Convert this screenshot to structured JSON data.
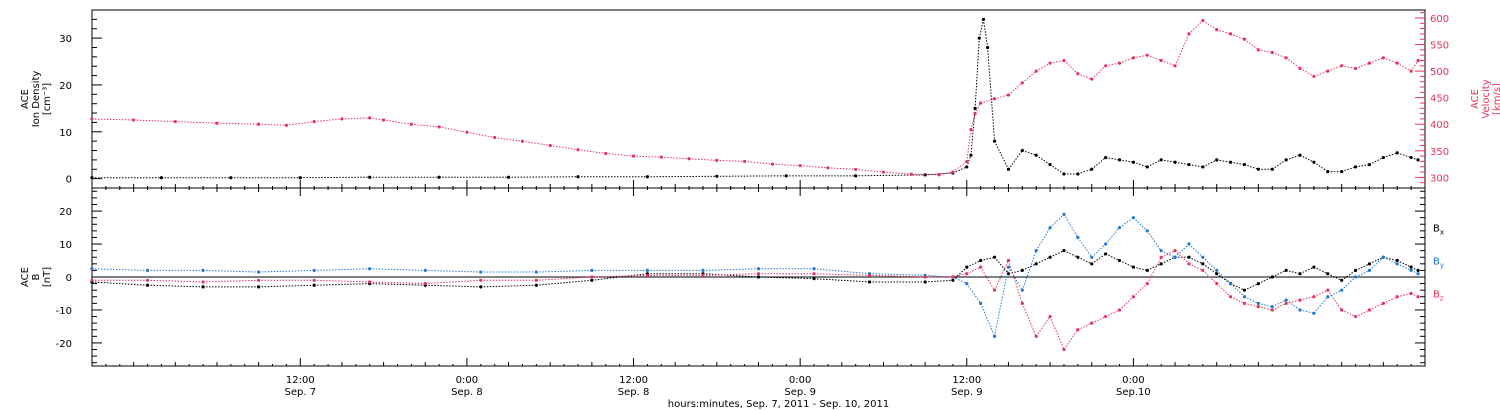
{
  "chart_data": [
    {
      "type": "scatter",
      "panel": "top",
      "ylabel_left": [
        "ACE",
        "Ion Density",
        "[cm⁻³]"
      ],
      "ylabel_right": [
        "ACE",
        "Velocity",
        "[km/s]"
      ],
      "ylim_left": [
        -2,
        36
      ],
      "yticks_left": [
        0,
        10,
        20,
        30
      ],
      "ylim_right": [
        280,
        615
      ],
      "yticks_right": [
        300,
        350,
        400,
        450,
        500,
        550,
        600
      ],
      "series": [
        {
          "axis": "left",
          "color": "#000000",
          "x": [
            0,
            5,
            10,
            15,
            20,
            25,
            30,
            35,
            40,
            45,
            50,
            55,
            60,
            62,
            63,
            63.3,
            63.6,
            63.9,
            64.2,
            64.5,
            65,
            66,
            67,
            68,
            69,
            70,
            71,
            72,
            73,
            74,
            75,
            76,
            77,
            78,
            79,
            80,
            81,
            82,
            83,
            84,
            85,
            86,
            87,
            88,
            89,
            90,
            91,
            92,
            93,
            94,
            95,
            95.5
          ],
          "y": [
            0.2,
            0.2,
            0.2,
            0.2,
            0.3,
            0.3,
            0.3,
            0.4,
            0.4,
            0.5,
            0.6,
            0.6,
            0.8,
            1.2,
            2.5,
            5,
            15,
            30,
            34,
            28,
            8,
            2,
            6,
            5,
            3,
            1,
            1,
            2,
            4.5,
            4,
            3.5,
            2.5,
            4,
            3.5,
            3,
            2.5,
            4,
            3.5,
            3,
            2,
            2,
            4,
            5,
            3.5,
            1.5,
            1.5,
            2.5,
            3,
            4.5,
            5.5,
            4.5,
            4
          ]
        },
        {
          "axis": "right",
          "color": "#e8325c",
          "x": [
            0,
            3,
            6,
            9,
            12,
            14,
            16,
            18,
            20,
            21,
            23,
            25,
            27,
            29,
            31,
            33,
            35,
            37,
            39,
            41,
            43,
            45,
            47,
            49,
            51,
            53,
            55,
            57,
            59,
            61,
            62,
            63,
            63.3,
            63.6,
            64,
            65,
            66,
            67,
            68,
            69,
            70,
            71,
            72,
            73,
            74,
            75,
            76,
            77,
            78,
            79,
            80,
            81,
            82,
            83,
            84,
            85,
            86,
            87,
            88,
            89,
            90,
            91,
            92,
            93,
            94,
            95,
            95.5
          ],
          "y": [
            410,
            408,
            405,
            402,
            400,
            398,
            405,
            410,
            412,
            408,
            400,
            395,
            385,
            375,
            368,
            360,
            352,
            345,
            340,
            338,
            335,
            332,
            330,
            325,
            322,
            318,
            315,
            310,
            306,
            305,
            310,
            330,
            390,
            420,
            440,
            448,
            455,
            478,
            500,
            515,
            520,
            495,
            485,
            510,
            515,
            525,
            530,
            520,
            510,
            570,
            595,
            578,
            570,
            560,
            540,
            535,
            525,
            505,
            490,
            500,
            510,
            505,
            515,
            525,
            515,
            500,
            520
          ]
        }
      ]
    },
    {
      "type": "scatter",
      "panel": "bottom",
      "ylabel": [
        "ACE",
        "B",
        "[nT]"
      ],
      "ylim": [
        -27,
        27
      ],
      "yticks": [
        -20,
        -10,
        0,
        10,
        20
      ],
      "zero_line": true,
      "series": [
        {
          "name": "Bx",
          "color": "#000000",
          "x": [
            0,
            4,
            8,
            12,
            16,
            20,
            24,
            28,
            32,
            36,
            40,
            44,
            48,
            52,
            56,
            60,
            62,
            63,
            64,
            65,
            66,
            67,
            68,
            69,
            70,
            71,
            72,
            73,
            74,
            75,
            76,
            77,
            78,
            79,
            80,
            81,
            82,
            83,
            84,
            85,
            86,
            87,
            88,
            89,
            90,
            91,
            92,
            93,
            94,
            95,
            95.5
          ],
          "y": [
            -1.5,
            -2.5,
            -3,
            -3,
            -2.5,
            -2,
            -2.5,
            -3,
            -2.5,
            -1,
            1,
            1,
            0,
            -0.5,
            -1.5,
            -1.5,
            -1,
            3,
            5,
            6,
            1,
            2,
            4,
            6,
            8,
            6,
            4,
            7,
            5,
            3,
            2,
            4,
            6,
            6,
            4,
            1,
            -2,
            -4,
            -2,
            0,
            2,
            1,
            3,
            1,
            -1,
            2,
            4,
            6,
            5,
            3,
            2
          ]
        },
        {
          "name": "By",
          "color": "#1e78d6",
          "x": [
            0,
            4,
            8,
            12,
            16,
            20,
            24,
            28,
            32,
            36,
            40,
            44,
            48,
            52,
            56,
            60,
            62,
            63,
            64,
            65,
            66,
            67,
            68,
            69,
            70,
            71,
            72,
            73,
            74,
            75,
            76,
            77,
            78,
            79,
            80,
            81,
            82,
            83,
            84,
            85,
            86,
            87,
            88,
            89,
            90,
            91,
            92,
            93,
            94,
            95,
            95.5
          ],
          "y": [
            2.5,
            2,
            2,
            1.5,
            2,
            2.5,
            2,
            1.5,
            1.5,
            2,
            2,
            2,
            2.5,
            2.5,
            1,
            0.5,
            0,
            -2,
            -8,
            -18,
            3,
            -4,
            8,
            15,
            19,
            12,
            6,
            10,
            15,
            18,
            14,
            8,
            6,
            10,
            6,
            2,
            -2,
            -6,
            -8,
            -9,
            -7,
            -10,
            -11,
            -6,
            -4,
            0,
            2,
            6,
            4,
            2,
            1
          ]
        },
        {
          "name": "Bz",
          "color": "#e8325c",
          "x": [
            0,
            4,
            8,
            12,
            16,
            20,
            24,
            28,
            32,
            36,
            40,
            44,
            48,
            52,
            56,
            60,
            62,
            63,
            64,
            65,
            66,
            67,
            68,
            69,
            70,
            71,
            72,
            73,
            74,
            75,
            76,
            77,
            78,
            79,
            80,
            81,
            82,
            83,
            84,
            85,
            86,
            87,
            88,
            89,
            90,
            91,
            92,
            93,
            94,
            95,
            95.5
          ],
          "y": [
            -1,
            -1,
            -1.5,
            -1,
            -1,
            -1.5,
            -2,
            -1,
            -1,
            0,
            0.5,
            0.5,
            1,
            1,
            0.5,
            0,
            0,
            1,
            3,
            -4,
            5,
            -8,
            -18,
            -12,
            -22,
            -16,
            -14,
            -12,
            -10,
            -6,
            -2,
            6,
            8,
            4,
            2,
            -2,
            -6,
            -8,
            -9,
            -10,
            -8,
            -7,
            -6,
            -4,
            -10,
            -12,
            -10,
            -8,
            -6,
            -5,
            -6
          ]
        }
      ],
      "legend": [
        {
          "label": "B",
          "sub": "x",
          "color": "#000000"
        },
        {
          "label": "B",
          "sub": "y",
          "color": "#1e78d6"
        },
        {
          "label": "B",
          "sub": "z",
          "color": "#e8325c"
        }
      ]
    }
  ],
  "x_axis": {
    "range_hours": [
      0,
      96
    ],
    "major_ticks": [
      {
        "h": 15,
        "time": "12:00",
        "date": "Sep. 7"
      },
      {
        "h": 27,
        "time": "0:00",
        "date": "Sep. 8"
      },
      {
        "h": 39,
        "time": "12:00",
        "date": "Sep. 8"
      },
      {
        "h": 51,
        "time": "0:00",
        "date": "Sep. 9"
      },
      {
        "h": 63,
        "time": "12:00",
        "date": "Sep. 9"
      },
      {
        "h": 75,
        "time": "0:00",
        "date": "Sep.10"
      }
    ],
    "xlabel": "hours:minutes, Sep.  7, 2011 - Sep. 10, 2011"
  }
}
